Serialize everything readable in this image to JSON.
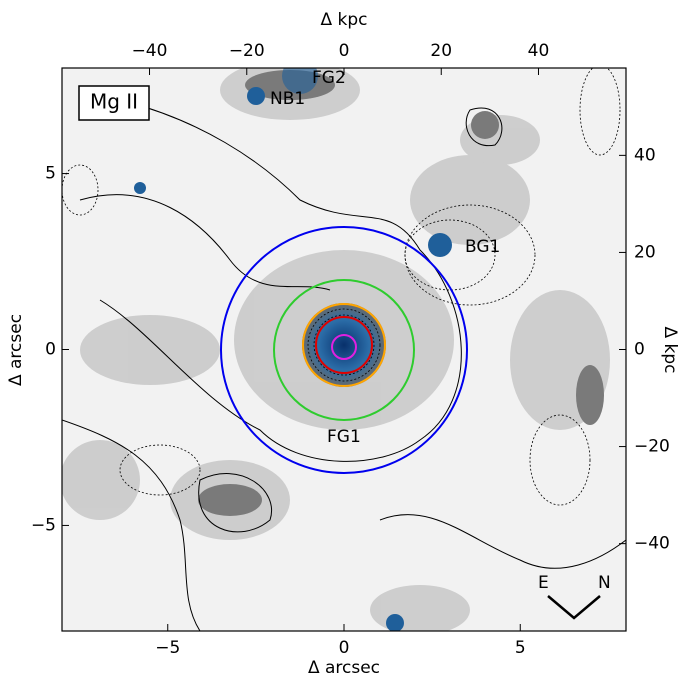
{
  "chart_data": {
    "type": "image",
    "title": "Mg II",
    "xlabel": "Δ arcsec",
    "ylabel": "Δ arcsec",
    "x2label": "Δ kpc",
    "y2label": "Δ kpc",
    "xlim": [
      -8,
      8
    ],
    "ylim": [
      -8,
      8
    ],
    "xticks": [
      -5,
      0,
      5
    ],
    "yticks": [
      -5,
      0,
      5
    ],
    "x2lim": [
      -58,
      58
    ],
    "y2lim": [
      -58,
      58
    ],
    "x2ticks": [
      -40,
      -20,
      0,
      20,
      40
    ],
    "y2ticks": [
      -40,
      -20,
      0,
      20,
      40
    ],
    "annotations": [
      "FG2",
      "NB1",
      "BG1",
      "FG1",
      "E",
      "N"
    ]
  }
}
